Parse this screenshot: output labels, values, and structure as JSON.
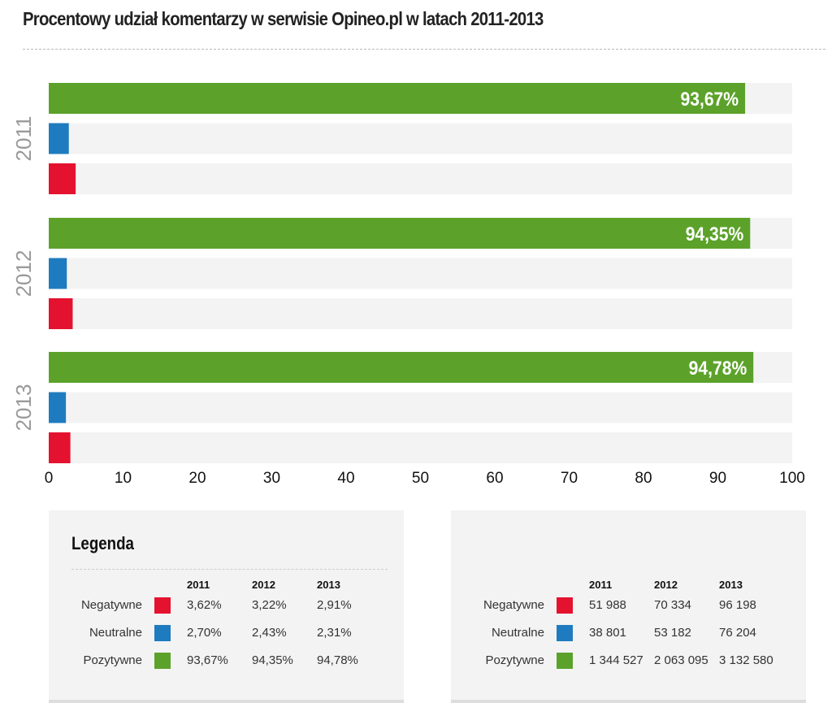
{
  "title": "Procentowy udział komentarzy w serwisie Opineo.pl w latach 2011-2013",
  "colors": {
    "Negatywne": "#e4122f",
    "Neutralne": "#1f7bbf",
    "Pozytywne": "#5ca22a",
    "track": "#f3f3f3"
  },
  "chart_data": {
    "type": "bar",
    "orientation": "horizontal",
    "title": "Procentowy udział komentarzy w serwisie Opineo.pl w latach 2011-2013",
    "categories": [
      "2011",
      "2012",
      "2013"
    ],
    "series": [
      {
        "name": "Pozytywne",
        "values": [
          93.67,
          94.35,
          94.78
        ],
        "labels": [
          "93,67%",
          "94,35%",
          "94,78%"
        ]
      },
      {
        "name": "Neutralne",
        "values": [
          2.7,
          2.43,
          2.31
        ]
      },
      {
        "name": "Negatywne",
        "values": [
          3.62,
          3.22,
          2.91
        ]
      }
    ],
    "xlim": [
      0,
      100
    ],
    "xticks": [
      "0",
      "10",
      "20",
      "30",
      "40",
      "50",
      "60",
      "70",
      "80",
      "90",
      "100"
    ]
  },
  "legend": {
    "title": "Legenda",
    "years": [
      "2011",
      "2012",
      "2013"
    ],
    "rows": [
      {
        "label": "Negatywne",
        "pct": [
          "3,62%",
          "3,22%",
          "2,91%"
        ],
        "counts": [
          "51 988",
          "70 334",
          "96 198"
        ]
      },
      {
        "label": "Neutralne",
        "pct": [
          "2,70%",
          "2,43%",
          "2,31%"
        ],
        "counts": [
          "38 801",
          "53 182",
          "76 204"
        ]
      },
      {
        "label": "Pozytywne",
        "pct": [
          "93,67%",
          "94,35%",
          "94,78%"
        ],
        "counts": [
          "1 344 527",
          "2 063 095",
          "3 132 580"
        ]
      }
    ]
  }
}
